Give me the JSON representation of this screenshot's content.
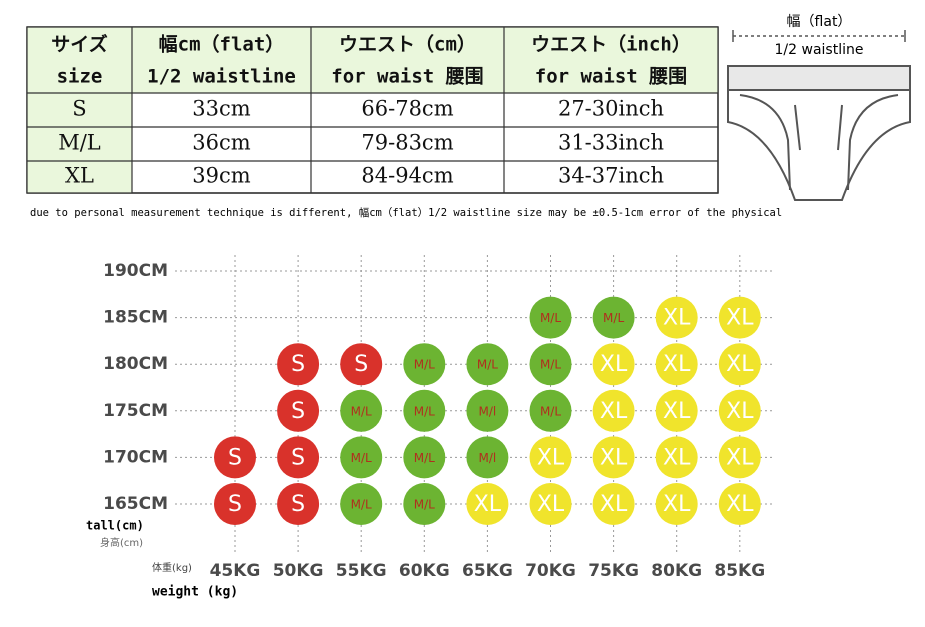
{
  "table": {
    "header": [
      [
        "サイズ",
        "size"
      ],
      [
        "幅cm（flat）",
        "1/2 waistline"
      ],
      [
        "ウエスト（cm）",
        "for waist 腰围"
      ],
      [
        "ウエスト（inch）",
        "for waist 腰围"
      ]
    ],
    "rows": [
      [
        "S",
        "33cm",
        "66-78cm",
        "27-30inch"
      ],
      [
        "M/L",
        "36cm",
        "79-83cm",
        "31-33inch"
      ],
      [
        "XL",
        "39cm",
        "84-94cm",
        "34-37inch"
      ]
    ]
  },
  "diagram": {
    "top_label": "幅（flat）",
    "bottom_label": "1/2 waistline"
  },
  "note": "due to personal measurement technique is different, 幅cm（flat）1/2 waistline size may be ±0.5-1cm error of the physical",
  "size_chart": {
    "heights": [
      "190CM",
      "185CM",
      "180CM",
      "175CM",
      "170CM",
      "165CM"
    ],
    "weights": [
      "45KG",
      "50KG",
      "55KG",
      "60KG",
      "65KG",
      "70KG",
      "75KG",
      "80KG",
      "85KG"
    ],
    "y_label": "tall(cm)",
    "y_label_cn": "身高(cm)",
    "x_label_cn": "体重(kg)",
    "x_label": "weight (kg)",
    "colors": {
      "S": "#d9322b",
      "M": "#6cb432",
      "X": "#f0e42c"
    },
    "grid": [
      [
        null,
        null,
        null,
        null,
        null,
        null,
        null,
        null,
        null
      ],
      [
        null,
        null,
        null,
        null,
        null,
        "M/L",
        "M/L",
        "XL",
        "XL"
      ],
      [
        null,
        "S",
        "S",
        "M/L",
        "M/L",
        "M/L",
        "XL",
        "XL",
        "XL"
      ],
      [
        null,
        "S",
        "M/L",
        "M/L",
        "M/l",
        "M/L",
        "XL",
        "XL",
        "XL"
      ],
      [
        "S",
        "S",
        "M/L",
        "M/L",
        "M/l",
        "XL",
        "XL",
        "XL",
        "XL"
      ],
      [
        "S",
        "S",
        "M/L",
        "M/L",
        "XL",
        "XL",
        "XL",
        "XL",
        "XL"
      ]
    ]
  }
}
